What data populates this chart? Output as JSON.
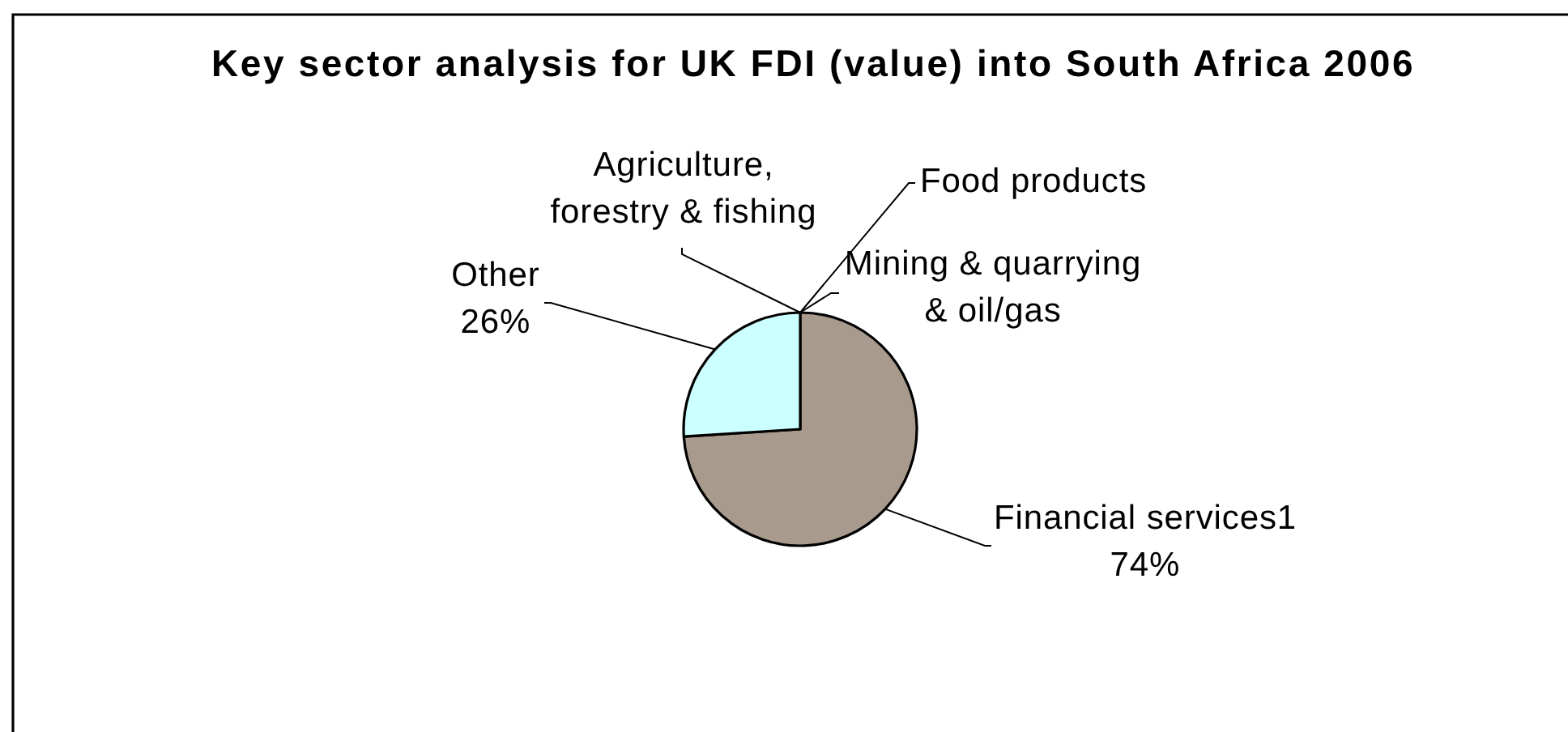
{
  "chart_data": {
    "type": "pie",
    "title": "Key sector analysis for UK FDI (value) into South Africa 2006",
    "categories": [
      "Agriculture, forestry & fishing",
      "Food products",
      "Mining & quarrying & oil/gas",
      "Financial services1",
      "Other"
    ],
    "values": [
      0,
      0,
      0,
      74,
      26
    ],
    "colors": [
      null,
      null,
      null,
      "#a89a8c",
      "#ccffff"
    ],
    "value_labels": [
      null,
      null,
      null,
      "74%",
      "26%"
    ]
  }
}
